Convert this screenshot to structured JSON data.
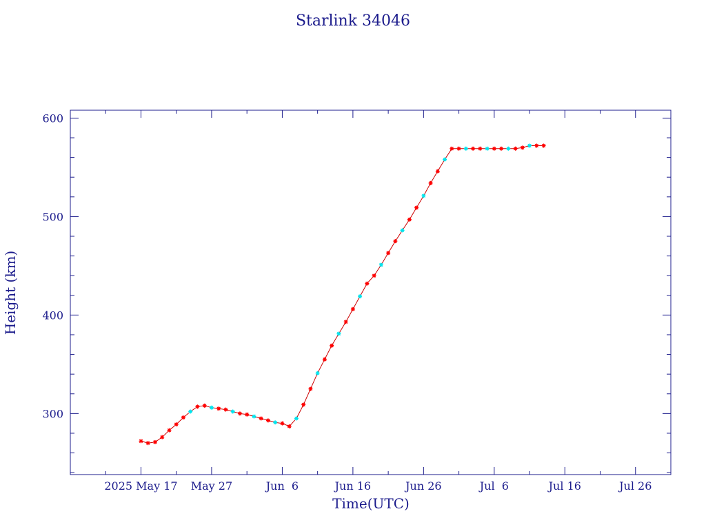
{
  "chart_data": {
    "type": "scatter",
    "title": "Starlink 34046",
    "xlabel": "Time(UTC)",
    "ylabel": "Height (km)",
    "xlim": [
      "2025-05-07",
      "2025-07-31"
    ],
    "ylim": [
      238,
      608
    ],
    "x_ticks": [
      {
        "date": "2025-05-17",
        "label": "2025 May 17"
      },
      {
        "date": "2025-05-27",
        "label": "May 27"
      },
      {
        "date": "2025-06-06",
        "label": "Jun  6"
      },
      {
        "date": "2025-06-16",
        "label": "Jun 16"
      },
      {
        "date": "2025-06-26",
        "label": "Jun 26"
      },
      {
        "date": "2025-07-06",
        "label": "Jul  6"
      },
      {
        "date": "2025-07-16",
        "label": "Jul 16"
      },
      {
        "date": "2025-07-26",
        "label": "Jul 26"
      }
    ],
    "x_minor_ticks": [
      "2025-05-12",
      "2025-05-22",
      "2025-06-01",
      "2025-06-11",
      "2025-06-21",
      "2025-07-01",
      "2025-07-11",
      "2025-07-21",
      "2025-07-31"
    ],
    "y_ticks": [
      300,
      400,
      500,
      600
    ],
    "y_minor_step": 20,
    "grid": false,
    "colors": {
      "axes": "#1c1c8c",
      "line": "#cc0000",
      "marker_primary": "#ff0000",
      "marker_secondary": "#00e5ee"
    },
    "series": [
      {
        "x": [
          "2025-05-17",
          "2025-05-18",
          "2025-05-19",
          "2025-05-20",
          "2025-05-21",
          "2025-05-22",
          "2025-05-23",
          "2025-05-24",
          "2025-05-25",
          "2025-05-26",
          "2025-05-27",
          "2025-05-28",
          "2025-05-29",
          "2025-05-30",
          "2025-05-31",
          "2025-06-01",
          "2025-06-02",
          "2025-06-03",
          "2025-06-04",
          "2025-06-05",
          "2025-06-06",
          "2025-06-07",
          "2025-06-08",
          "2025-06-09",
          "2025-06-10",
          "2025-06-11",
          "2025-06-12",
          "2025-06-13",
          "2025-06-14",
          "2025-06-15",
          "2025-06-16",
          "2025-06-17",
          "2025-06-18",
          "2025-06-19",
          "2025-06-20",
          "2025-06-21",
          "2025-06-22",
          "2025-06-23",
          "2025-06-24",
          "2025-06-25",
          "2025-06-26",
          "2025-06-27",
          "2025-06-28",
          "2025-06-29",
          "2025-06-30",
          "2025-07-01",
          "2025-07-02",
          "2025-07-03",
          "2025-07-04",
          "2025-07-05",
          "2025-07-06",
          "2025-07-07",
          "2025-07-08",
          "2025-07-09",
          "2025-07-10",
          "2025-07-11",
          "2025-07-12",
          "2025-07-13"
        ],
        "y": [
          272,
          270,
          271,
          276,
          283,
          289,
          296,
          302,
          307,
          308,
          306,
          305,
          304,
          302,
          300,
          299,
          297,
          295,
          293,
          291,
          290,
          287,
          295,
          309,
          325,
          341,
          355,
          369,
          381,
          393,
          406,
          419,
          432,
          440,
          451,
          463,
          475,
          486,
          497,
          509,
          521,
          534,
          546,
          558,
          569,
          569,
          569,
          569,
          569,
          569,
          569,
          569,
          569,
          569,
          570,
          572,
          572,
          572
        ]
      }
    ]
  }
}
